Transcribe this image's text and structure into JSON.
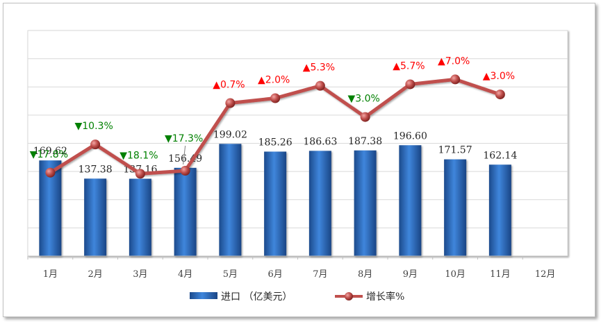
{
  "chart_data": {
    "type": "bar",
    "categories": [
      "1月",
      "2月",
      "3月",
      "4月",
      "5月",
      "6月",
      "7月",
      "8月",
      "9月",
      "10月",
      "11月",
      "12月"
    ],
    "series": [
      {
        "name": "进口 （亿美元）",
        "type": "bar",
        "values": [
          169.62,
          137.38,
          137.16,
          156.49,
          199.02,
          185.26,
          186.63,
          187.38,
          196.6,
          171.57,
          162.14,
          null
        ],
        "labels": [
          "169.62",
          "137.38",
          "137.16",
          "156.49",
          "199.02",
          "185.26",
          "186.63",
          "187.38",
          "196.60",
          "171.57",
          "162.14",
          ""
        ],
        "color": "#2e6ec4"
      },
      {
        "name": "增长率%",
        "type": "line",
        "values": [
          -17.8,
          -10.3,
          -18.1,
          -17.3,
          0.7,
          2.0,
          5.3,
          -3.0,
          5.7,
          7.0,
          3.0,
          null
        ],
        "labels": [
          "▼17.8%",
          "▼10.3%",
          "▼18.1%",
          "▼17.3%",
          "▲0.7%",
          "▲2.0%",
          "▲5.3%",
          "▼3.0%",
          "▲5.7%",
          "▲7.0%",
          "▲3.0%",
          ""
        ],
        "color": "#c0504d"
      }
    ],
    "bar_axis_range": [
      0,
      400
    ],
    "line_axis_range": [
      -40,
      20
    ],
    "grid": true,
    "legend": "bottom-center",
    "colors": {
      "up": "#ff0000",
      "down": "#008000",
      "bar": "#2e6ec4",
      "line": "#c0504d"
    }
  }
}
